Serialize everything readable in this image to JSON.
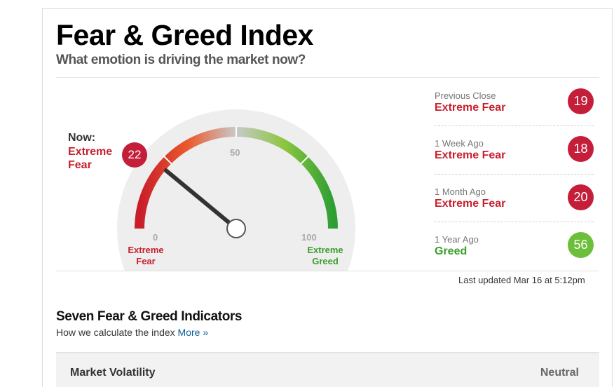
{
  "header": {
    "title": "Fear & Greed Index",
    "subtitle": "What emotion is driving the market now?"
  },
  "gauge": {
    "now_label": "Now:",
    "now_status": "Extreme Fear",
    "now_value": "22",
    "value": 22,
    "ticks": {
      "min": "0",
      "mid": "50",
      "max": "100"
    },
    "low_label": "Extreme Fear",
    "high_label": "Extreme Greed"
  },
  "history": [
    {
      "when": "Previous Close",
      "status": "Extreme Fear",
      "value": "19",
      "color": "#c41e3a"
    },
    {
      "when": "1 Week Ago",
      "status": "Extreme Fear",
      "value": "18",
      "color": "#c41e3a"
    },
    {
      "when": "1 Month Ago",
      "status": "Extreme Fear",
      "value": "20",
      "color": "#c41e3a"
    },
    {
      "when": "1 Year Ago",
      "status": "Greed",
      "value": "56",
      "color": "#6cbf3a"
    }
  ],
  "updated": "Last updated Mar 16 at 5:12pm",
  "indicators": {
    "title": "Seven Fear & Greed Indicators",
    "subtitle": "How we calculate the index",
    "more_link": "More »",
    "rows": [
      {
        "name": "Market Volatility",
        "value": "Neutral"
      }
    ]
  },
  "colors": {
    "fear_red": "#c8202f",
    "greed_green": "#3a9e2c",
    "link_blue": "#0c5e98"
  }
}
